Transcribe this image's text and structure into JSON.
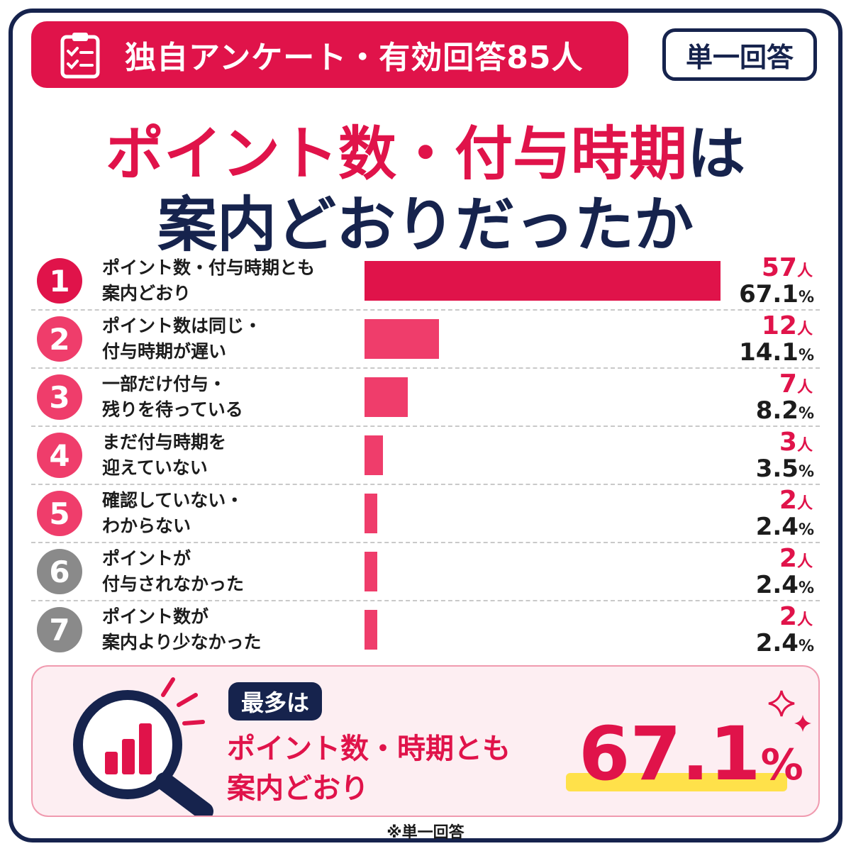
{
  "header": {
    "badge_text": "独自アンケート・有効回答85人",
    "tag_text": "単一回答"
  },
  "title": {
    "line1_red": "ポイント数・付与時期",
    "line1_suffix": "は",
    "line2": "案内どおりだったか"
  },
  "colors": {
    "accent": "#e0134a",
    "navy": "#16234d",
    "bar_top": "#e0134a",
    "bar_other": "#ef3d6b",
    "grey": "#8a8a8a",
    "highlight": "#ffe14a"
  },
  "chart_data": {
    "type": "bar",
    "orientation": "horizontal",
    "count_unit": "人",
    "percent_unit": "%",
    "items": [
      {
        "rank": "1",
        "label_lines": [
          "ポイント数・付与時期とも",
          "案内どおり"
        ],
        "count": "57",
        "percent": "67.1",
        "value": 67.1
      },
      {
        "rank": "2",
        "label_lines": [
          "ポイント数は同じ・",
          "付与時期が遅い"
        ],
        "count": "12",
        "percent": "14.1",
        "value": 14.1
      },
      {
        "rank": "3",
        "label_lines": [
          "一部だけ付与・",
          "残りを待っている"
        ],
        "count": "7",
        "percent": "8.2",
        "value": 8.2
      },
      {
        "rank": "4",
        "label_lines": [
          "まだ付与時期を",
          "迎えていない"
        ],
        "count": "3",
        "percent": "3.5",
        "value": 3.5
      },
      {
        "rank": "5",
        "label_lines": [
          "確認していない・",
          "わからない"
        ],
        "count": "2",
        "percent": "2.4",
        "value": 2.4
      },
      {
        "rank": "6",
        "label_lines": [
          "ポイントが",
          "付与されなかった"
        ],
        "count": "2",
        "percent": "2.4",
        "value": 2.4
      },
      {
        "rank": "7",
        "label_lines": [
          "ポイント数が",
          "案内より少なかった"
        ],
        "count": "2",
        "percent": "2.4",
        "value": 2.4
      }
    ],
    "rank_colors": [
      "#e0134a",
      "#ef3d6b",
      "#ef3d6b",
      "#ef3d6b",
      "#ef3d6b",
      "#8a8a8a",
      "#8a8a8a"
    ],
    "xlim": [
      0,
      67.1
    ]
  },
  "summary": {
    "tag": "最多は",
    "text_line1": "ポイント数・時期とも",
    "text_line2": "案内どおり",
    "value": "67.1",
    "unit": "%"
  },
  "footer": {
    "note": "※単一回答"
  },
  "icons": {
    "badge_icon": "clipboard-check-icon",
    "summary_icon": "magnifier-bar-chart-icon",
    "sparkle": "sparkle-icon"
  }
}
